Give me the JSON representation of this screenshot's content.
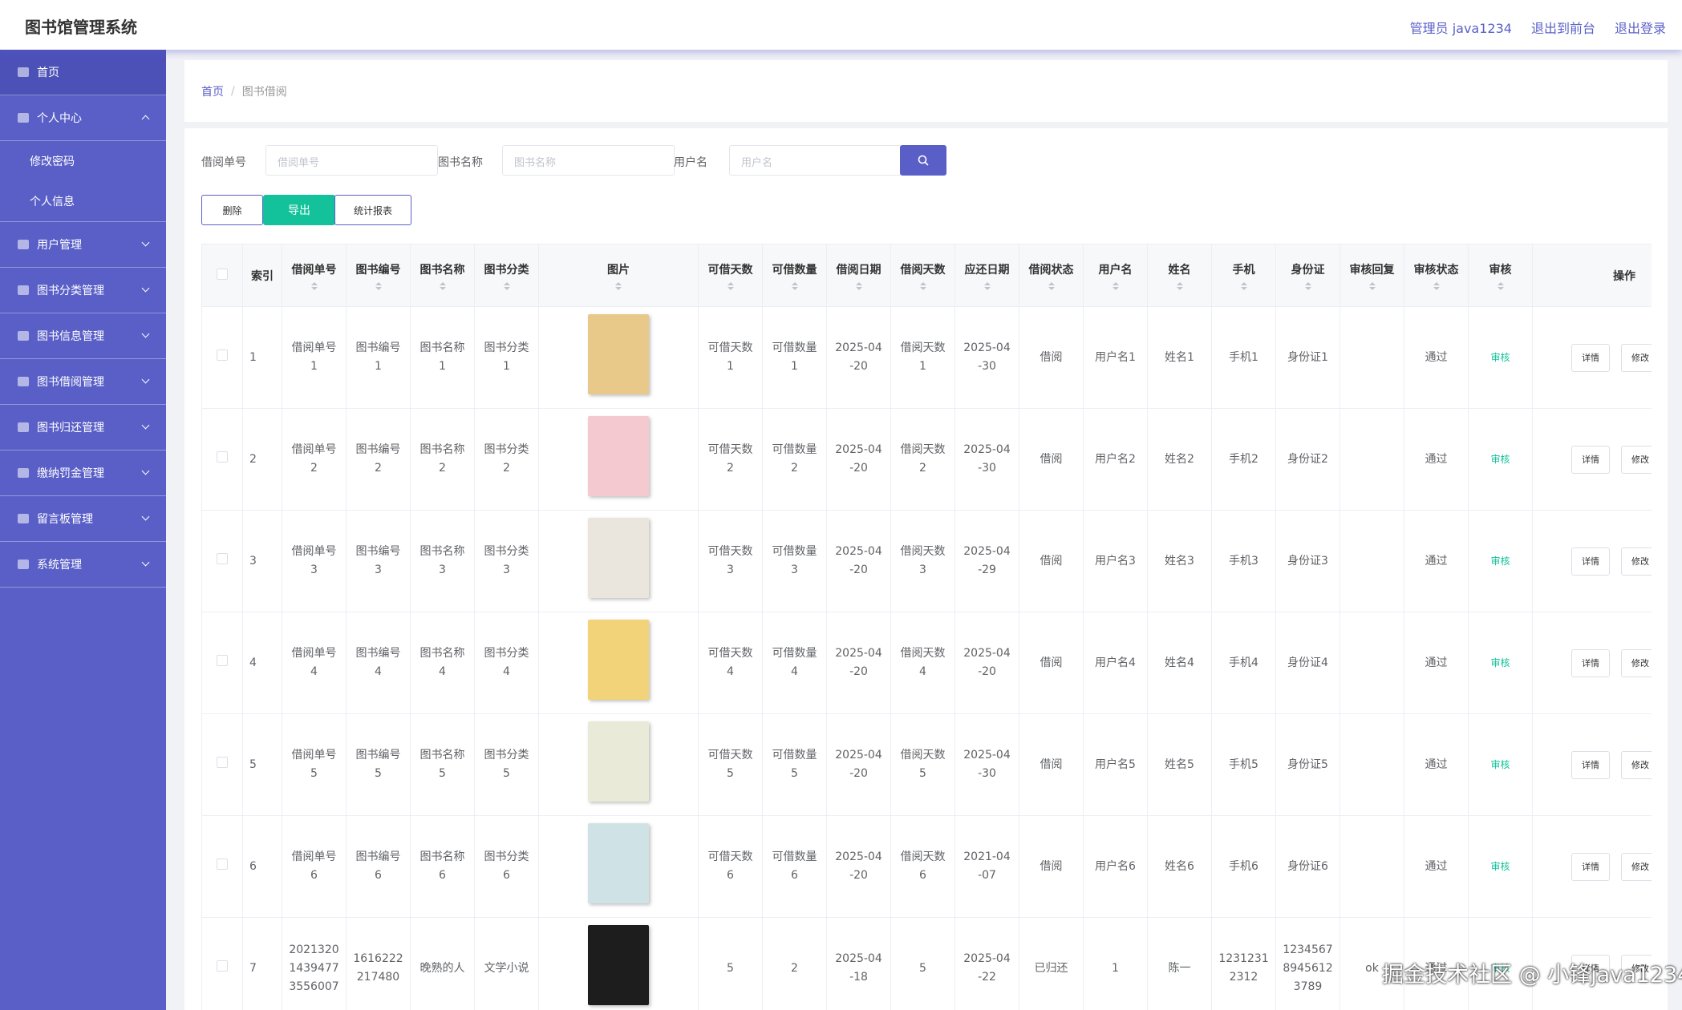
{
  "header": {
    "title": "图书馆管理系统",
    "links": [
      "管理员 java1234",
      "退出到前台",
      "退出登录"
    ]
  },
  "sidebar": {
    "items": [
      {
        "label": "首页"
      },
      {
        "label": "个人中心",
        "children": [
          "修改密码",
          "个人信息"
        ]
      },
      {
        "label": "用户管理"
      },
      {
        "label": "图书分类管理"
      },
      {
        "label": "图书信息管理"
      },
      {
        "label": "图书借阅管理"
      },
      {
        "label": "图书归还管理"
      },
      {
        "label": "缴纳罚金管理"
      },
      {
        "label": "留言板管理"
      },
      {
        "label": "系统管理"
      }
    ]
  },
  "breadcrumb": [
    "首页",
    "图书借阅"
  ],
  "search": {
    "fields": [
      {
        "label": "借阅单号",
        "placeholder": "借阅单号"
      },
      {
        "label": "图书名称",
        "placeholder": "图书名称"
      },
      {
        "label": "用户名",
        "placeholder": "用户名"
      }
    ]
  },
  "actions": [
    "删除",
    "导出",
    "统计报表"
  ],
  "table": {
    "columns": [
      "索引",
      "借阅单号",
      "图书编号",
      "图书名称",
      "图书分类",
      "图片",
      "可借天数",
      "可借数量",
      "借阅日期",
      "借阅天数",
      "应还日期",
      "借阅状态",
      "用户名",
      "姓名",
      "手机",
      "身份证",
      "审核回复",
      "审核状态",
      "审核",
      "操作"
    ],
    "rows": [
      [
        "1",
        "借阅单号1",
        "图书编号1",
        "图书名称1",
        "图书分类1",
        null,
        "可借天数1",
        "可借数量1",
        "2025-04-20",
        "借阅天数1",
        "2025-04-30",
        "借阅",
        "用户名1",
        "姓名1",
        "手机1",
        "身份证1",
        null,
        "通过",
        "审核",
        [
          "详情",
          "修改"
        ]
      ],
      [
        "2",
        "借阅单号2",
        "图书编号2",
        "图书名称2",
        "图书分类2",
        null,
        "可借天数2",
        "可借数量2",
        "2025-04-20",
        "借阅天数2",
        "2025-04-30",
        "借阅",
        "用户名2",
        "姓名2",
        "手机2",
        "身份证2",
        null,
        "通过",
        "审核",
        [
          "详情",
          "修改"
        ]
      ],
      [
        "3",
        "借阅单号3",
        "图书编号3",
        "图书名称3",
        "图书分类3",
        null,
        "可借天数3",
        "可借数量3",
        "2025-04-20",
        "借阅天数3",
        "2025-04-29",
        "借阅",
        "用户名3",
        "姓名3",
        "手机3",
        "身份证3",
        null,
        "通过",
        "审核",
        [
          "详情",
          "修改"
        ]
      ],
      [
        "4",
        "借阅单号4",
        "图书编号4",
        "图书名称4",
        "图书分类4",
        null,
        "可借天数4",
        "可借数量4",
        "2025-04-20",
        "借阅天数4",
        "2025-04-20",
        "借阅",
        "用户名4",
        "姓名4",
        "手机4",
        "身份证4",
        null,
        "通过",
        "审核",
        [
          "详情",
          "修改"
        ]
      ],
      [
        "5",
        "借阅单号5",
        "图书编号5",
        "图书名称5",
        "图书分类5",
        null,
        "可借天数5",
        "可借数量5",
        "2025-04-20",
        "借阅天数5",
        "2025-04-30",
        "借阅",
        "用户名5",
        "姓名5",
        "手机5",
        "身份证5",
        null,
        "通过",
        "审核",
        [
          "详情",
          "修改"
        ]
      ],
      [
        "6",
        "借阅单号6",
        "图书编号6",
        "图书名称6",
        "图书分类6",
        null,
        "可借天数6",
        "可借数量6",
        "2025-04-20",
        "借阅天数6",
        "2021-04-07",
        "借阅",
        "用户名6",
        "姓名6",
        "手机6",
        "身份证6",
        null,
        "通过",
        "审核",
        [
          "详情",
          "修改"
        ]
      ],
      [
        "7",
        "202132014394773556007",
        "1616222217480",
        "晚熟的人",
        "文学小说",
        null,
        "5",
        "2",
        "2025-04-18",
        "5",
        "2025-04-22",
        "已归还",
        "1",
        "陈一",
        "12312312312",
        "123456789456123789",
        "ok",
        "通过",
        "审核",
        [
          "详情",
          "修改"
        ]
      ]
    ]
  },
  "watermark": "掘金技术社区 @ 小锋java1234"
}
